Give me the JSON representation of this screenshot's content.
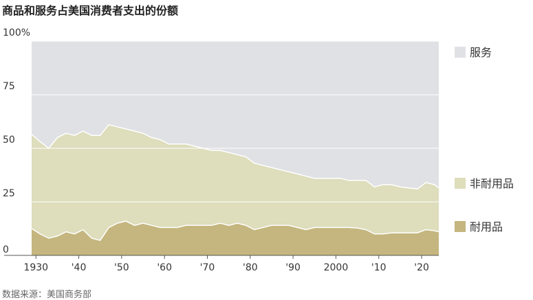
{
  "title": "商品和服务占美国消费者支出的份额",
  "source": "数据来源：美国商务部",
  "chart_data": {
    "type": "area",
    "stacked": true,
    "title": "商品和服务占美国消费者支出的份额",
    "xlabel": "",
    "ylabel": "",
    "xlim": [
      1929,
      2024
    ],
    "ylim": [
      0,
      100
    ],
    "grid": true,
    "legend": "right",
    "y_ticks": [
      0,
      25,
      50,
      75,
      100
    ],
    "y_tick_labels": [
      "0",
      "25",
      "50",
      "75",
      "100%"
    ],
    "x_ticks": [
      1930,
      1940,
      1950,
      1960,
      1970,
      1980,
      1990,
      2000,
      2010,
      2020
    ],
    "x_tick_labels": [
      "1930",
      "'40",
      "'50",
      "'60",
      "'70",
      "'80",
      "'90",
      "2000",
      "'10",
      "'20"
    ],
    "x": [
      1929,
      1931,
      1933,
      1935,
      1937,
      1939,
      1941,
      1943,
      1945,
      1947,
      1949,
      1951,
      1953,
      1955,
      1957,
      1959,
      1961,
      1963,
      1965,
      1967,
      1969,
      1971,
      1973,
      1975,
      1977,
      1979,
      1981,
      1983,
      1985,
      1987,
      1989,
      1991,
      1993,
      1995,
      1997,
      1999,
      2001,
      2003,
      2005,
      2007,
      2009,
      2011,
      2013,
      2015,
      2017,
      2019,
      2021,
      2023,
      2024
    ],
    "series": [
      {
        "name": "耐用品",
        "color": "#c4b67e",
        "values": [
          12.5,
          10,
          8,
          9,
          11,
          10,
          12,
          8,
          7,
          13,
          15,
          16,
          14,
          15,
          14,
          13,
          13,
          13,
          14,
          14,
          14,
          14,
          15,
          14,
          15,
          14,
          12,
          13,
          14,
          14,
          14,
          13,
          12,
          13,
          13,
          13,
          13,
          13,
          12.8,
          12,
          10,
          10,
          10.5,
          10.5,
          10.5,
          10.5,
          12,
          11.5,
          11
        ]
      },
      {
        "name": "非耐用品",
        "color": "#deddbc",
        "values": [
          44,
          43,
          42,
          46,
          46,
          46,
          46,
          48,
          49,
          48,
          45,
          43,
          44,
          42,
          41,
          41,
          39,
          39,
          38,
          37,
          36,
          35,
          34,
          34,
          32,
          32,
          31,
          29,
          27,
          26,
          25,
          25,
          25,
          23,
          23,
          23,
          23,
          22,
          22.2,
          23,
          22,
          23,
          22.5,
          21.5,
          21,
          20.5,
          22,
          21.5,
          20.5
        ]
      },
      {
        "name": "服务",
        "color": "#e0e1e4",
        "values": [
          43.5,
          47,
          50,
          45,
          43,
          44,
          42,
          44,
          44,
          39,
          40,
          41,
          42,
          43,
          45,
          46,
          48,
          48,
          48,
          49,
          50,
          51,
          51,
          52,
          53,
          54,
          57,
          58,
          59,
          60,
          61,
          62,
          63,
          64,
          64,
          64,
          64,
          65,
          65,
          65,
          68,
          67,
          67,
          68,
          68.5,
          69,
          66,
          67,
          68.5
        ]
      }
    ]
  }
}
